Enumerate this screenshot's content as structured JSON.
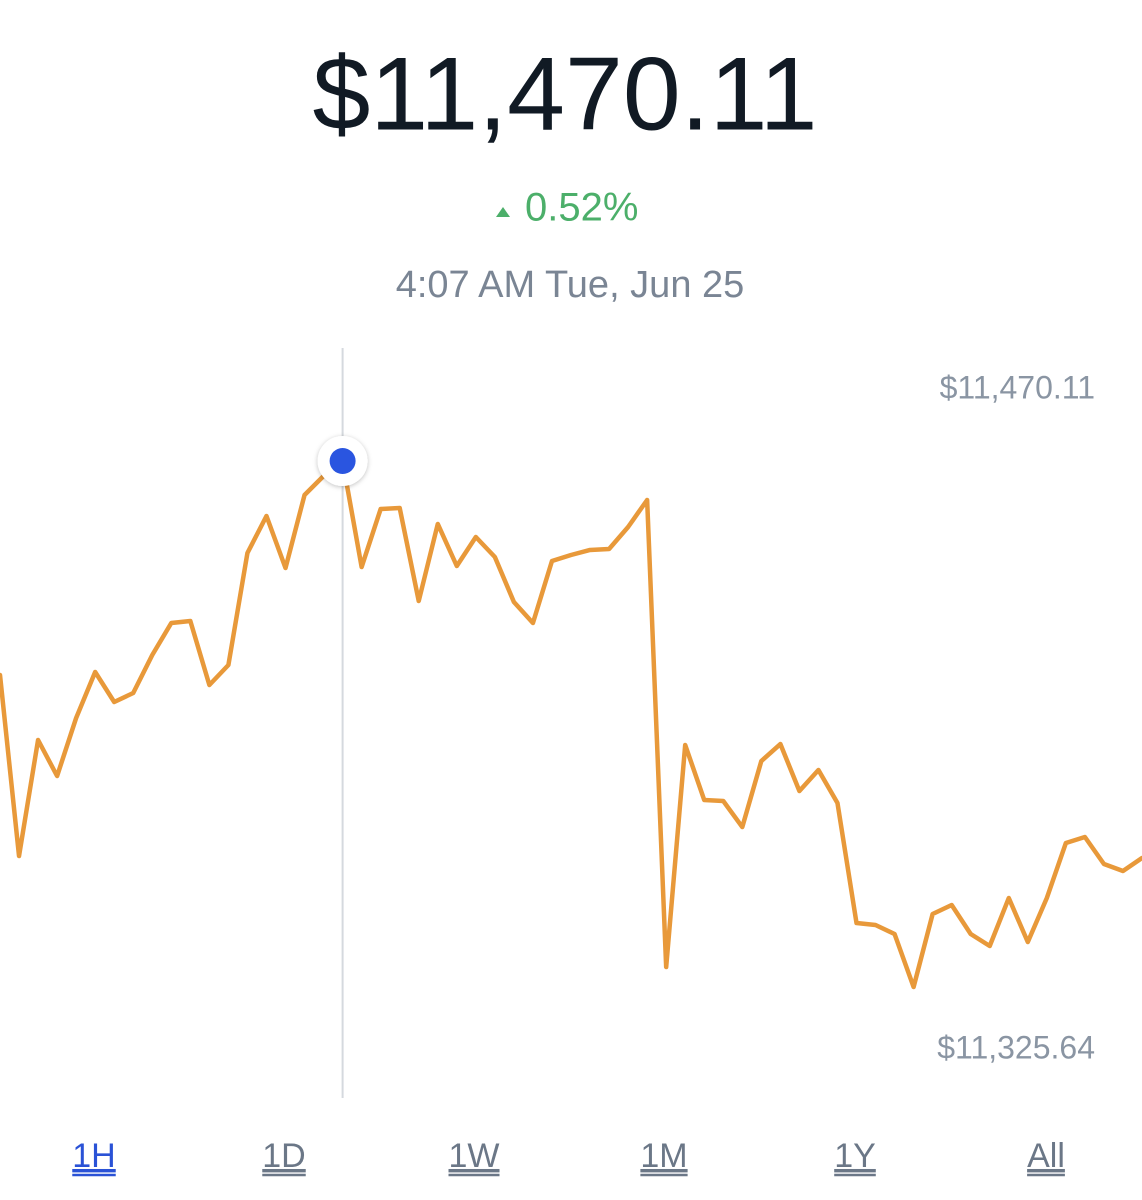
{
  "header": {
    "price": "$11,470.11",
    "change": "0.52%",
    "timestamp": "4:07 AM Tue, Jun 25"
  },
  "chart_data": {
    "type": "line",
    "color": "#e8993a",
    "values": [
      11411.33,
      11361.62,
      11393.48,
      11383.59,
      11399.52,
      11412.16,
      11403.92,
      11406.39,
      11416.83,
      11425.61,
      11426.16,
      11408.59,
      11414.08,
      11444.84,
      11455.0,
      11440.72,
      11460.77,
      11465.99,
      11470.11,
      11441.0,
      11456.93,
      11457.2,
      11431.66,
      11452.81,
      11441.27,
      11449.24,
      11443.74,
      11431.38,
      11425.61,
      11442.64,
      11444.29,
      11445.67,
      11445.94,
      11451.98,
      11459.4,
      11331.13,
      11392.11,
      11377.0,
      11376.73,
      11369.58,
      11387.71,
      11392.38,
      11379.47,
      11385.24,
      11376.18,
      11343.22,
      11342.67,
      11340.2,
      11325.64,
      11345.69,
      11348.16,
      11340.2,
      11336.9,
      11350.08,
      11338.0,
      11350.08,
      11365.19,
      11366.84,
      11359.42,
      11357.5,
      11361.07
    ],
    "ylim": [
      11325.64,
      11470.11
    ],
    "yticks": [
      {
        "value": 11470.11,
        "label": "$11,470.11"
      },
      {
        "value": 11325.64,
        "label": "$11,325.64"
      }
    ]
  },
  "range_tabs": [
    {
      "label": "1H",
      "selected": true
    },
    {
      "label": "1D",
      "selected": false
    },
    {
      "label": "1W",
      "selected": false
    },
    {
      "label": "1M",
      "selected": false
    },
    {
      "label": "1Y",
      "selected": false
    },
    {
      "label": "All",
      "selected": false
    }
  ]
}
